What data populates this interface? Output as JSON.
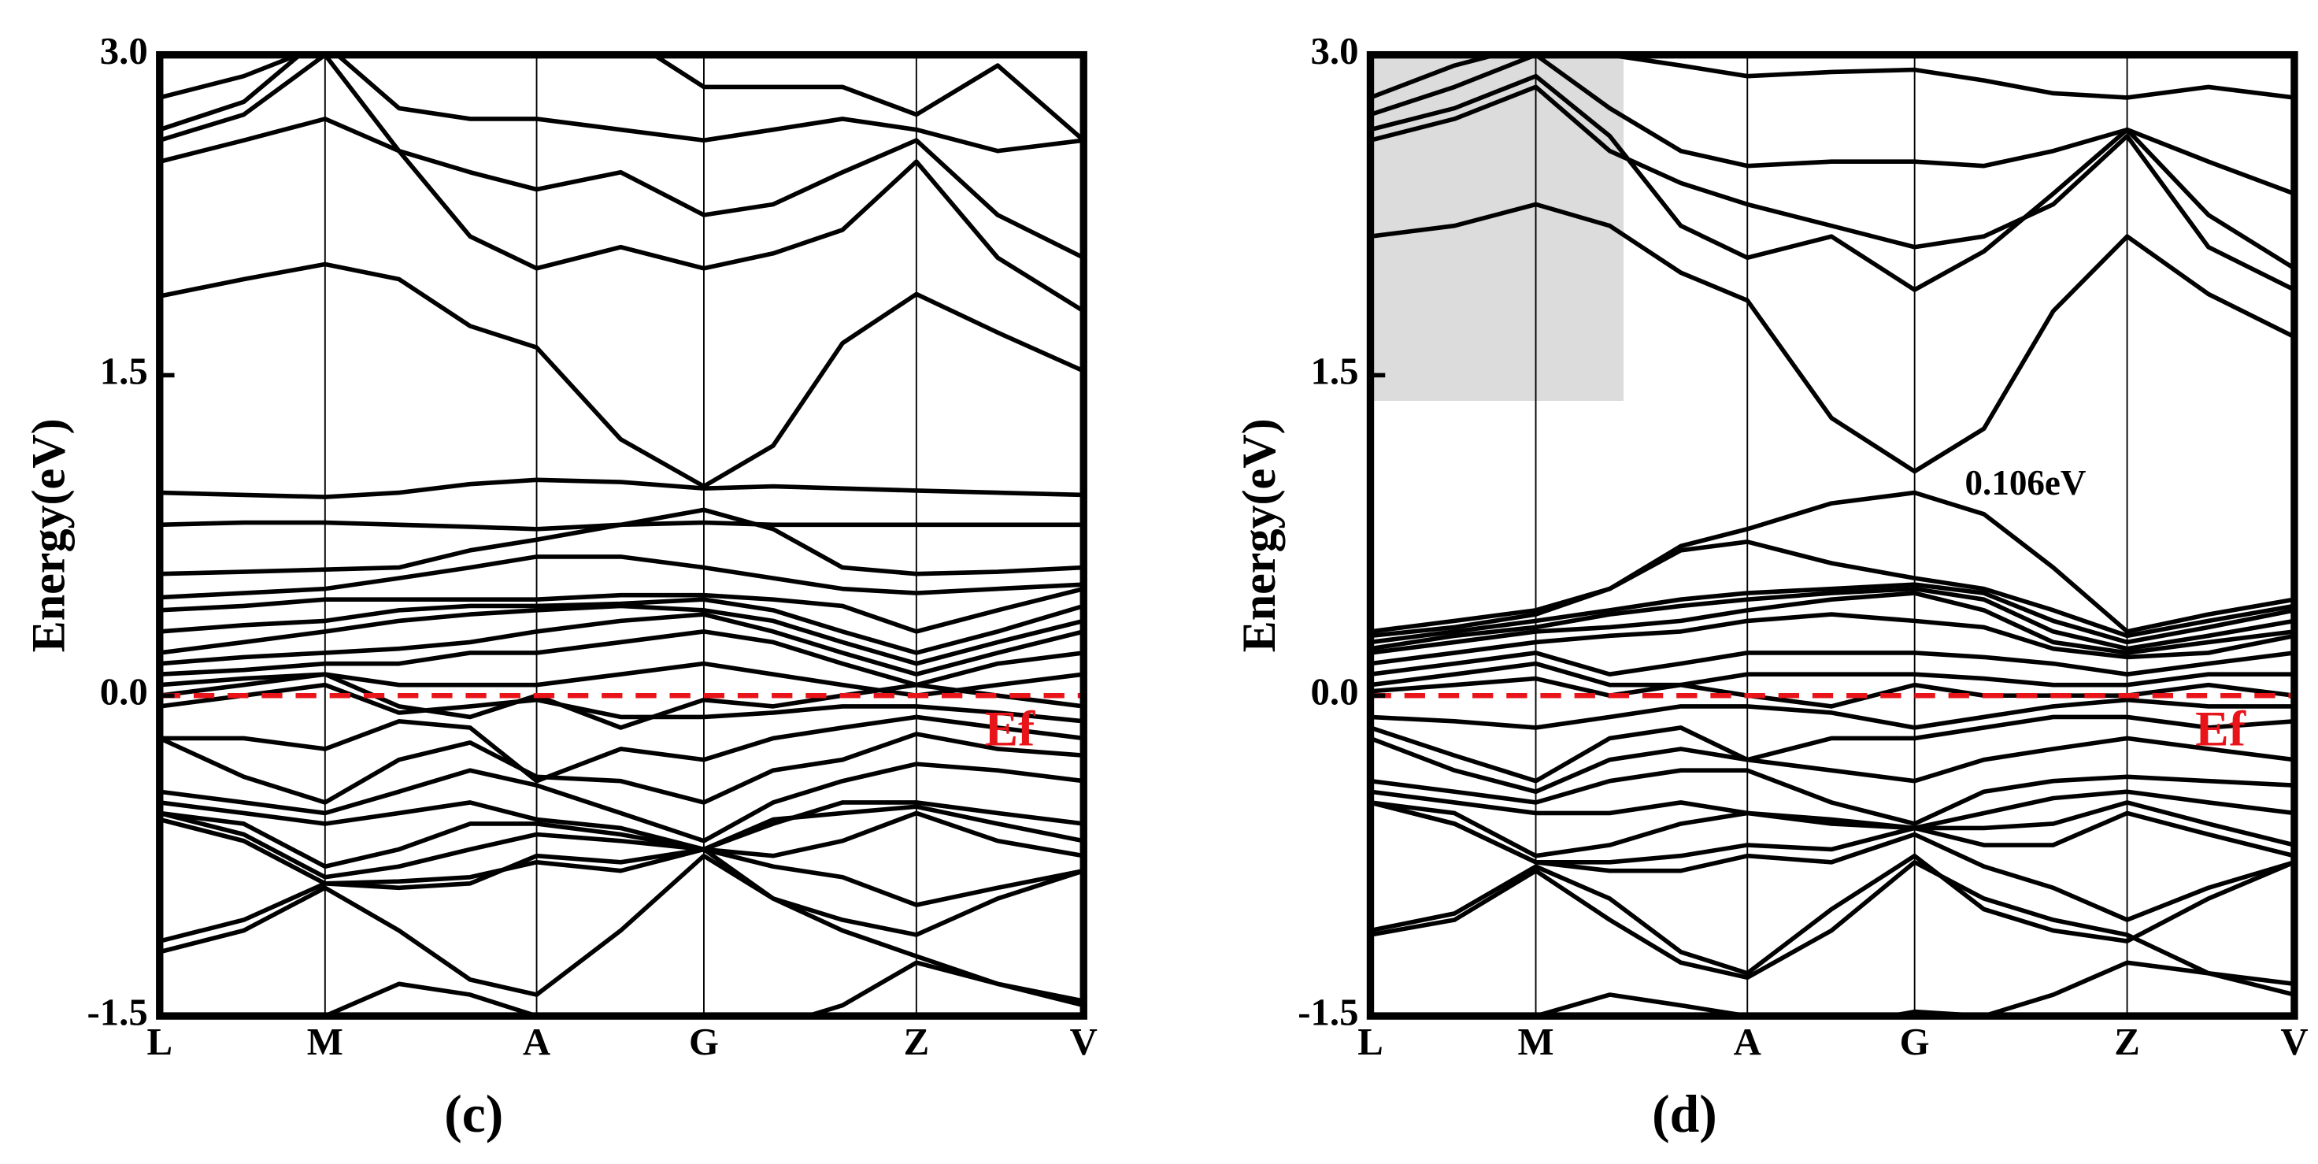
{
  "chart_data": [
    {
      "type": "line",
      "panel_label": "(c)",
      "y_label": "Energy(eV)",
      "x": [
        0,
        0.091,
        0.179,
        0.259,
        0.336,
        0.408,
        0.499,
        0.589,
        0.664,
        0.739,
        0.819,
        0.907,
        1.0
      ],
      "xlim": [
        0,
        1
      ],
      "xticks": [
        {
          "value": 0,
          "label": "L"
        },
        {
          "value": 0.179,
          "label": "M"
        },
        {
          "value": 0.408,
          "label": "A"
        },
        {
          "value": 0.589,
          "label": "G"
        },
        {
          "value": 0.819,
          "label": "Z"
        },
        {
          "value": 1.0,
          "label": "V"
        }
      ],
      "ylim": [
        -1.5,
        3.0
      ],
      "yticks": [
        {
          "value": 3.0,
          "label": "3.0"
        },
        1.5,
        {
          "value": 0,
          "label": "0.0"
        },
        -1.5
      ],
      "color": "#000000",
      "reference_line": {
        "value": 0,
        "color": "#e8141a",
        "label": "Ef",
        "label_x": 0.92,
        "label_y": -0.18
      },
      "bands": [
        [
          2.8,
          2.9,
          3.05,
          2.75,
          2.7,
          2.7,
          2.65,
          2.6,
          2.65,
          2.7,
          2.65,
          2.55,
          2.6
        ],
        [
          2.65,
          2.78,
          3.1,
          3.0,
          3.1,
          3.0,
          3.1,
          2.85,
          2.85,
          2.85,
          2.72,
          2.95,
          2.6
        ],
        [
          2.5,
          2.6,
          2.7,
          2.55,
          2.45,
          2.37,
          2.45,
          2.25,
          2.3,
          2.45,
          2.6,
          2.25,
          2.05
        ],
        [
          2.6,
          2.72,
          3.0,
          2.55,
          2.15,
          2.0,
          2.1,
          2.0,
          2.07,
          2.18,
          2.5,
          2.05,
          1.8
        ],
        [
          1.87,
          1.95,
          2.02,
          1.95,
          1.73,
          1.63,
          1.2,
          0.98,
          1.17,
          1.65,
          1.88,
          1.7,
          1.52
        ],
        [
          0.95,
          0.94,
          0.93,
          0.95,
          0.99,
          1.01,
          1.0,
          0.97,
          0.98,
          0.97,
          0.96,
          0.95,
          0.94
        ],
        [
          0.8,
          0.81,
          0.81,
          0.8,
          0.79,
          0.78,
          0.8,
          0.81,
          0.8,
          0.8,
          0.8,
          0.8,
          0.8
        ],
        [
          0.57,
          0.58,
          0.59,
          0.6,
          0.68,
          0.73,
          0.8,
          0.87,
          0.78,
          0.6,
          0.57,
          0.58,
          0.6
        ],
        [
          0.46,
          0.48,
          0.5,
          0.55,
          0.6,
          0.65,
          0.65,
          0.6,
          0.55,
          0.5,
          0.48,
          0.5,
          0.52
        ],
        [
          0.4,
          0.42,
          0.45,
          0.45,
          0.45,
          0.45,
          0.47,
          0.47,
          0.45,
          0.42,
          0.3,
          0.4,
          0.5
        ],
        [
          0.3,
          0.33,
          0.35,
          0.4,
          0.42,
          0.42,
          0.43,
          0.45,
          0.4,
          0.3,
          0.2,
          0.3,
          0.42
        ],
        [
          0.2,
          0.25,
          0.3,
          0.35,
          0.38,
          0.4,
          0.42,
          0.4,
          0.35,
          0.25,
          0.15,
          0.25,
          0.35
        ],
        [
          0.15,
          0.18,
          0.2,
          0.22,
          0.25,
          0.3,
          0.35,
          0.38,
          0.3,
          0.2,
          0.1,
          0.2,
          0.3
        ],
        [
          0.1,
          0.12,
          0.15,
          0.15,
          0.2,
          0.2,
          0.25,
          0.3,
          0.25,
          0.15,
          0.05,
          0.15,
          0.2
        ],
        [
          0.05,
          0.08,
          0.1,
          0.05,
          0.05,
          0.05,
          0.1,
          0.15,
          0.1,
          0.05,
          0.0,
          0.05,
          0.1
        ],
        [
          0.0,
          0.05,
          0.1,
          -0.05,
          -0.1,
          0.0,
          -0.15,
          -0.02,
          -0.05,
          0.0,
          0.05,
          0.0,
          -0.05
        ],
        [
          -0.05,
          0.0,
          0.05,
          -0.08,
          -0.05,
          -0.02,
          -0.1,
          -0.1,
          -0.08,
          -0.05,
          -0.05,
          -0.08,
          -0.12
        ],
        [
          -0.2,
          -0.2,
          -0.25,
          -0.12,
          -0.15,
          -0.4,
          -0.25,
          -0.3,
          -0.2,
          -0.15,
          -0.1,
          -0.15,
          -0.2
        ],
        [
          -0.2,
          -0.38,
          -0.5,
          -0.3,
          -0.22,
          -0.38,
          -0.4,
          -0.5,
          -0.35,
          -0.3,
          -0.18,
          -0.25,
          -0.28
        ],
        [
          -0.45,
          -0.5,
          -0.55,
          -0.45,
          -0.35,
          -0.42,
          -0.55,
          -0.68,
          -0.5,
          -0.4,
          -0.32,
          -0.35,
          -0.4
        ],
        [
          -0.5,
          -0.55,
          -0.6,
          -0.55,
          -0.5,
          -0.58,
          -0.62,
          -0.72,
          -0.6,
          -0.5,
          -0.5,
          -0.55,
          -0.6
        ],
        [
          -0.55,
          -0.6,
          -0.8,
          -0.72,
          -0.6,
          -0.6,
          -0.65,
          -0.72,
          -0.58,
          -0.55,
          -0.52,
          -0.6,
          -0.68
        ],
        [
          -0.55,
          -0.65,
          -0.85,
          -0.8,
          -0.72,
          -0.65,
          -0.68,
          -0.72,
          -0.75,
          -0.68,
          -0.55,
          -0.68,
          -0.75
        ],
        [
          -0.58,
          -0.68,
          -0.88,
          -0.9,
          -0.88,
          -0.75,
          -0.78,
          -0.72,
          -0.8,
          -0.85,
          -0.98,
          -0.9,
          -0.82
        ],
        [
          -1.15,
          -1.05,
          -0.88,
          -0.87,
          -0.85,
          -0.78,
          -0.82,
          -0.72,
          -0.95,
          -1.05,
          -1.12,
          -0.95,
          -0.82
        ],
        [
          -1.2,
          -1.1,
          -0.9,
          -1.1,
          -1.33,
          -1.4,
          -1.1,
          -0.75,
          -0.95,
          -1.1,
          -1.22,
          -1.35,
          -1.43
        ],
        [
          -1.7,
          -1.6,
          -1.5,
          -1.35,
          -1.4,
          -1.5,
          -1.6,
          -1.6,
          -1.55,
          -1.45,
          -1.25,
          -1.35,
          -1.45
        ]
      ]
    },
    {
      "type": "line",
      "panel_label": "(d)",
      "y_label": "Energy(eV)",
      "x": [
        0,
        0.091,
        0.179,
        0.259,
        0.336,
        0.408,
        0.499,
        0.589,
        0.664,
        0.739,
        0.819,
        0.907,
        1.0
      ],
      "xlim": [
        0,
        1
      ],
      "xticks": [
        {
          "value": 0,
          "label": "L"
        },
        {
          "value": 0.179,
          "label": "M"
        },
        {
          "value": 0.408,
          "label": "A"
        },
        {
          "value": 0.589,
          "label": "G"
        },
        {
          "value": 0.819,
          "label": "Z"
        },
        {
          "value": 1.0,
          "label": "V"
        }
      ],
      "ylim": [
        -1.5,
        3.0
      ],
      "yticks": [
        {
          "value": 3.0,
          "label": "3.0"
        },
        1.5,
        {
          "value": 0,
          "label": "0.0"
        },
        -1.5
      ],
      "color": "#000000",
      "reference_line": {
        "value": 0,
        "color": "#e8141a",
        "label": "Ef",
        "label_x": 0.92,
        "label_y": -0.18
      },
      "shaded_region": {
        "x": [
          0,
          0.274
        ],
        "y": [
          1.38,
          3.0
        ],
        "color": "#dcdcdc"
      },
      "annotation": {
        "text": "0.106eV",
        "x": 0.709,
        "y": 0.98
      },
      "bands": [
        [
          2.8,
          2.95,
          3.05,
          3.0,
          2.95,
          2.9,
          2.92,
          2.93,
          2.88,
          2.82,
          2.8,
          2.85,
          2.8
        ],
        [
          2.72,
          2.85,
          3.0,
          2.75,
          2.55,
          2.48,
          2.5,
          2.5,
          2.48,
          2.55,
          2.65,
          2.5,
          2.35
        ],
        [
          2.65,
          2.75,
          2.9,
          2.62,
          2.2,
          2.05,
          2.15,
          1.9,
          2.08,
          2.35,
          2.65,
          2.25,
          2.0
        ],
        [
          2.6,
          2.7,
          2.85,
          2.55,
          2.4,
          2.3,
          2.2,
          2.1,
          2.15,
          2.3,
          2.62,
          2.1,
          1.9
        ],
        [
          2.15,
          2.2,
          2.3,
          2.2,
          1.98,
          1.85,
          1.3,
          1.05,
          1.25,
          1.8,
          2.15,
          1.88,
          1.68
        ],
        [
          0.3,
          0.35,
          0.4,
          0.5,
          0.7,
          0.78,
          0.9,
          0.95,
          0.85,
          0.6,
          0.3,
          0.38,
          0.45
        ],
        [
          0.28,
          0.32,
          0.38,
          0.5,
          0.68,
          0.72,
          0.62,
          0.55,
          0.5,
          0.4,
          0.28,
          0.35,
          0.42
        ],
        [
          0.25,
          0.3,
          0.35,
          0.4,
          0.45,
          0.48,
          0.5,
          0.52,
          0.48,
          0.35,
          0.25,
          0.32,
          0.4
        ],
        [
          0.22,
          0.28,
          0.32,
          0.38,
          0.42,
          0.45,
          0.48,
          0.5,
          0.45,
          0.3,
          0.22,
          0.28,
          0.35
        ],
        [
          0.2,
          0.25,
          0.3,
          0.32,
          0.35,
          0.4,
          0.45,
          0.48,
          0.4,
          0.25,
          0.2,
          0.25,
          0.3
        ],
        [
          0.15,
          0.2,
          0.25,
          0.28,
          0.3,
          0.35,
          0.38,
          0.35,
          0.32,
          0.22,
          0.18,
          0.2,
          0.28
        ],
        [
          0.1,
          0.15,
          0.2,
          0.1,
          0.15,
          0.2,
          0.2,
          0.2,
          0.18,
          0.15,
          0.1,
          0.15,
          0.2
        ],
        [
          0.05,
          0.1,
          0.15,
          0.05,
          0.05,
          0.1,
          0.1,
          0.1,
          0.08,
          0.05,
          0.05,
          0.1,
          0.1
        ],
        [
          0.02,
          0.05,
          0.08,
          0.0,
          0.05,
          0.0,
          -0.05,
          0.05,
          0.0,
          0.0,
          0.0,
          0.05,
          0.0
        ],
        [
          -0.1,
          -0.12,
          -0.15,
          -0.1,
          -0.05,
          -0.05,
          -0.08,
          -0.15,
          -0.1,
          -0.05,
          -0.02,
          -0.05,
          -0.05
        ],
        [
          -0.15,
          -0.28,
          -0.4,
          -0.2,
          -0.15,
          -0.3,
          -0.2,
          -0.2,
          -0.15,
          -0.1,
          -0.1,
          -0.15,
          -0.12
        ],
        [
          -0.2,
          -0.35,
          -0.45,
          -0.3,
          -0.25,
          -0.3,
          -0.35,
          -0.4,
          -0.3,
          -0.25,
          -0.2,
          -0.25,
          -0.3
        ],
        [
          -0.4,
          -0.45,
          -0.5,
          -0.4,
          -0.35,
          -0.35,
          -0.5,
          -0.6,
          -0.45,
          -0.4,
          -0.38,
          -0.4,
          -0.42
        ],
        [
          -0.45,
          -0.5,
          -0.55,
          -0.55,
          -0.5,
          -0.55,
          -0.6,
          -0.62,
          -0.55,
          -0.48,
          -0.45,
          -0.5,
          -0.55
        ],
        [
          -0.5,
          -0.55,
          -0.75,
          -0.7,
          -0.6,
          -0.55,
          -0.58,
          -0.62,
          -0.62,
          -0.6,
          -0.5,
          -0.6,
          -0.7
        ],
        [
          -0.5,
          -0.6,
          -0.78,
          -0.78,
          -0.75,
          -0.7,
          -0.72,
          -0.62,
          -0.7,
          -0.7,
          -0.55,
          -0.65,
          -0.75
        ],
        [
          -0.5,
          -0.6,
          -0.78,
          -0.82,
          -0.82,
          -0.75,
          -0.78,
          -0.65,
          -0.8,
          -0.9,
          -1.05,
          -0.9,
          -0.78
        ],
        [
          -1.1,
          -1.02,
          -0.8,
          -0.95,
          -1.2,
          -1.3,
          -1.0,
          -0.75,
          -1.0,
          -1.1,
          -1.15,
          -0.95,
          -0.78
        ],
        [
          -1.12,
          -1.05,
          -0.82,
          -1.05,
          -1.25,
          -1.32,
          -1.1,
          -0.78,
          -0.95,
          -1.05,
          -1.12,
          -1.3,
          -1.35
        ],
        [
          -1.7,
          -1.6,
          -1.5,
          -1.4,
          -1.45,
          -1.5,
          -1.55,
          -1.48,
          -1.5,
          -1.4,
          -1.25,
          -1.3,
          -1.4
        ]
      ]
    }
  ]
}
